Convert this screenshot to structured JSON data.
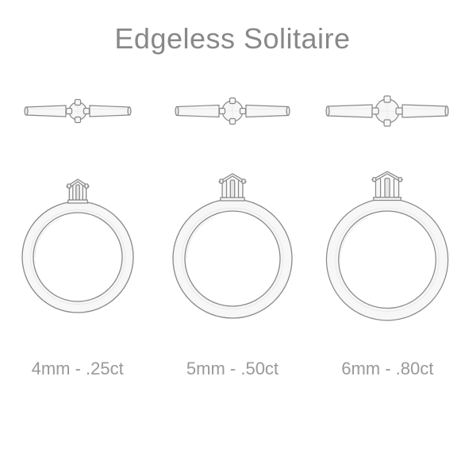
{
  "title": "Edgeless Solitaire",
  "background": "#ffffff",
  "stroke": "#888888",
  "fill_light": "#f7f7f7",
  "fill_shadow": "#e8e8e8",
  "text_color": "#888888",
  "title_fontsize": 36,
  "label_fontsize": 22,
  "label_color": "#999999",
  "rings": [
    {
      "label": "4mm - .25ct",
      "top_view": {
        "band_len": 130,
        "band_h": 10,
        "stone_w": 22,
        "prong_s": 7,
        "prong_off": 11
      },
      "front_view": {
        "outer_d": 140,
        "band_w": 14,
        "crown_w": 28,
        "crown_h": 28
      }
    },
    {
      "label": "5mm - .50ct",
      "top_view": {
        "band_len": 140,
        "band_h": 11,
        "stone_w": 26,
        "prong_s": 7,
        "prong_off": 13
      },
      "front_view": {
        "outer_d": 150,
        "band_w": 15,
        "crown_w": 34,
        "crown_h": 32
      }
    },
    {
      "label": "6mm - .80ct",
      "top_view": {
        "band_len": 150,
        "band_h": 12,
        "stone_w": 30,
        "prong_s": 8,
        "prong_off": 15
      },
      "front_view": {
        "outer_d": 160,
        "band_w": 16,
        "crown_w": 40,
        "crown_h": 36
      }
    }
  ]
}
